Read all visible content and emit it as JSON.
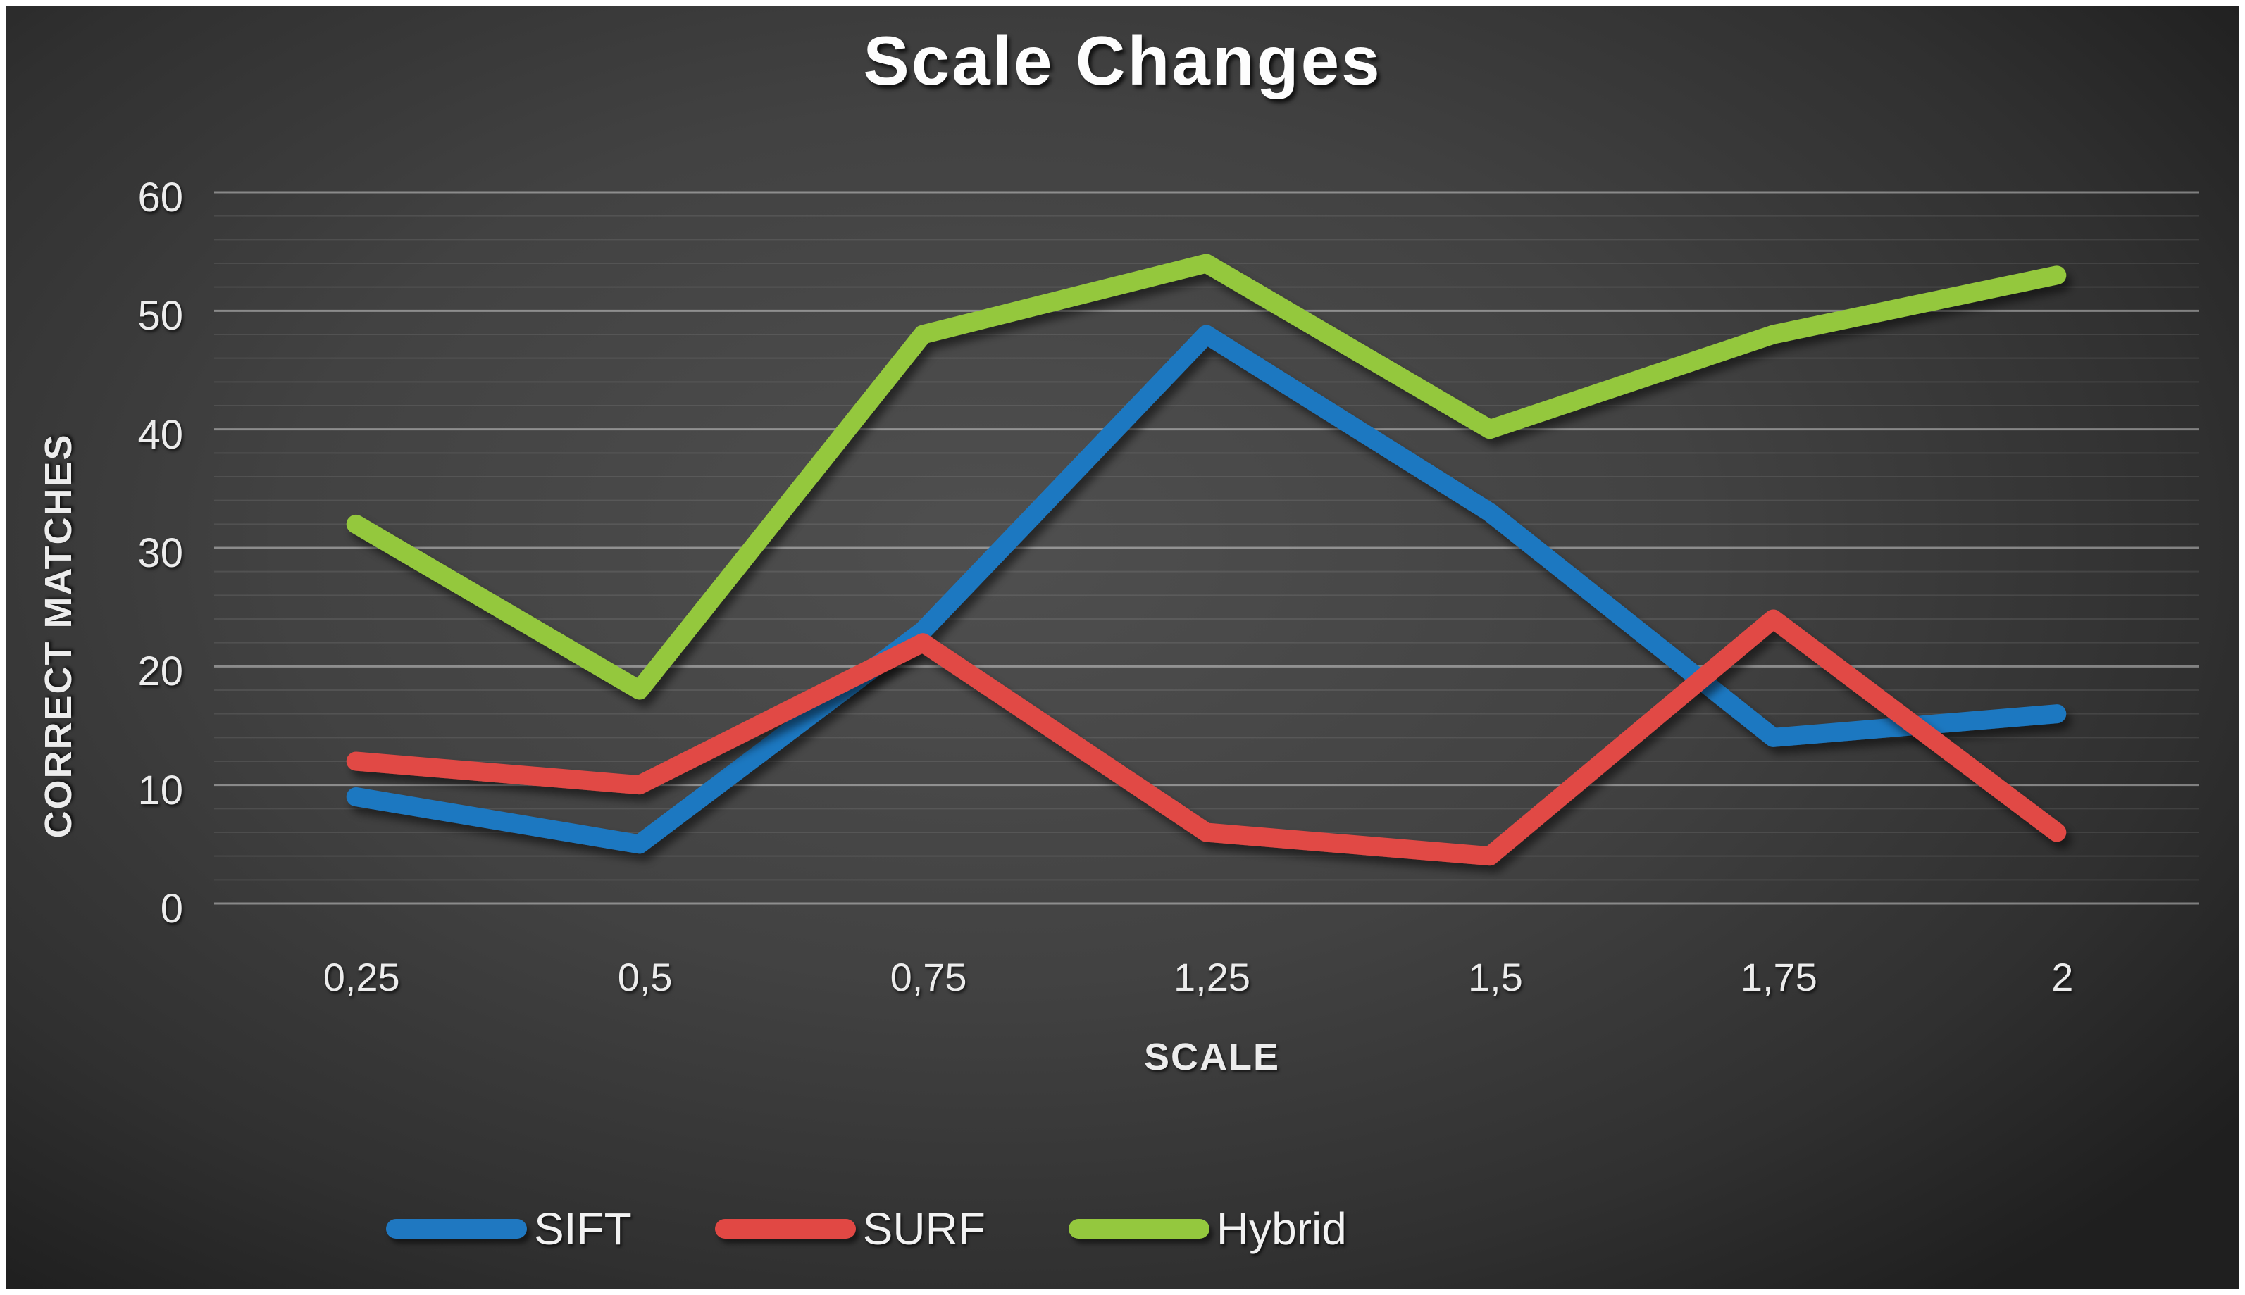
{
  "chart_data": {
    "type": "line",
    "title": "Scale Changes",
    "xlabel": "SCALE",
    "ylabel": "CORRECT MATCHES",
    "categories": [
      "0,25",
      "0,5",
      "0,75",
      "1,25",
      "1,5",
      "1,75",
      "2"
    ],
    "series": [
      {
        "name": "SIFT",
        "color": "#1F78C1",
        "values": [
          9,
          5,
          23,
          48,
          33,
          14,
          16
        ]
      },
      {
        "name": "SURF",
        "color": "#E14844",
        "values": [
          12,
          10,
          22,
          6,
          4,
          24,
          6
        ]
      },
      {
        "name": "Hybrid",
        "color": "#94C83E",
        "values": [
          32,
          18,
          48,
          54,
          40,
          48,
          53
        ]
      }
    ],
    "ylim": [
      0,
      60
    ],
    "y_major_step": 10,
    "y_minor_step": 2,
    "y_tick_labels": [
      "0",
      "10",
      "20",
      "30",
      "40",
      "50",
      "60"
    ],
    "grid": "horizontal, minor every 2, major every 10",
    "legend_position": "bottom",
    "legend_entries": [
      "SIFT",
      "SURF",
      "Hybrid"
    ]
  },
  "style": {
    "background": "dark gray radial gradient",
    "frame_color": "#ffffff",
    "text_color": "#ececec",
    "minor_grid_color": "rgba(255,255,255,0.09)",
    "major_grid_color": "rgba(255,255,255,0.40)"
  }
}
